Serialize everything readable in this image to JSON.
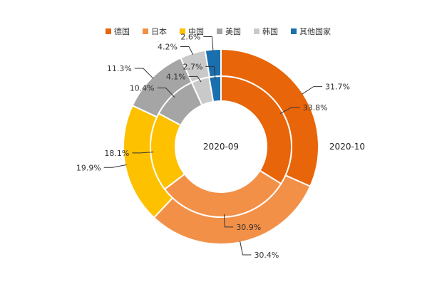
{
  "chart_data": {
    "type": "pie",
    "subtype": "nested-donut",
    "categories": [
      "德国",
      "日本",
      "中国",
      "美国",
      "韩国",
      "其他国家"
    ],
    "colors": [
      "#e8650a",
      "#f39048",
      "#fdc100",
      "#a5a5a5",
      "#c9c9c9",
      "#1a6faf"
    ],
    "series": [
      {
        "name": "2020-09",
        "ring": "inner",
        "values": [
          33.8,
          30.9,
          18.1,
          10.4,
          4.1,
          2.7
        ]
      },
      {
        "name": "2020-10",
        "ring": "outer",
        "values": [
          31.7,
          30.4,
          19.9,
          11.3,
          4.2,
          2.6
        ]
      }
    ],
    "value_format": "percent_one_decimal",
    "legend_position": "top",
    "start_angle": "12 o'clock",
    "direction": "clockwise"
  }
}
